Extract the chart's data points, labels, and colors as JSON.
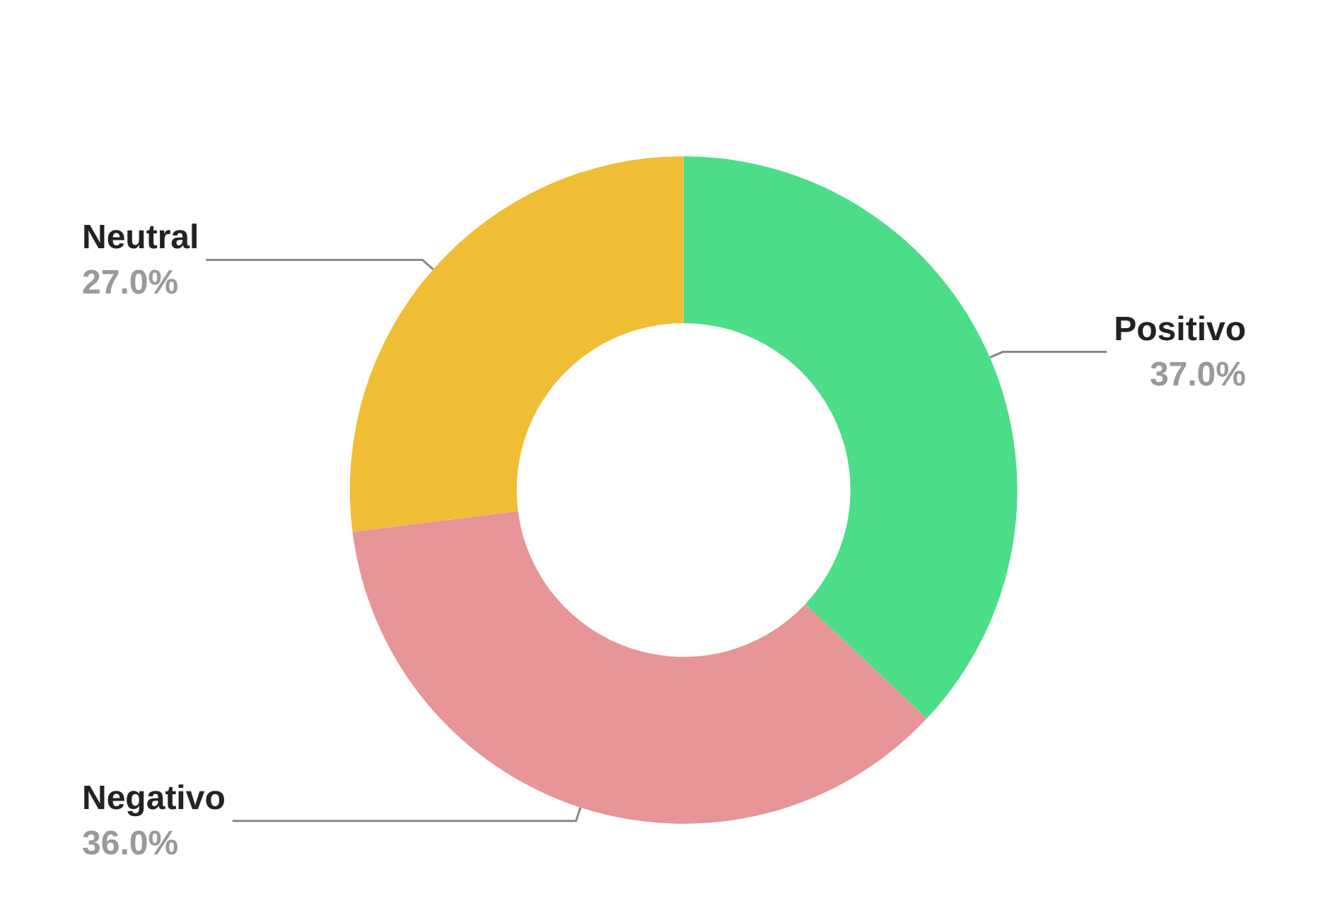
{
  "chart_data": {
    "type": "donut",
    "categories": [
      "Positivo",
      "Negativo",
      "Neutral"
    ],
    "values": [
      37,
      36,
      27
    ],
    "colors": [
      "#4cdd88",
      "#e79597",
      "#efbe35"
    ],
    "value_labels": [
      "37.0%",
      "36.0%",
      "27.0%"
    ],
    "legend": false
  }
}
